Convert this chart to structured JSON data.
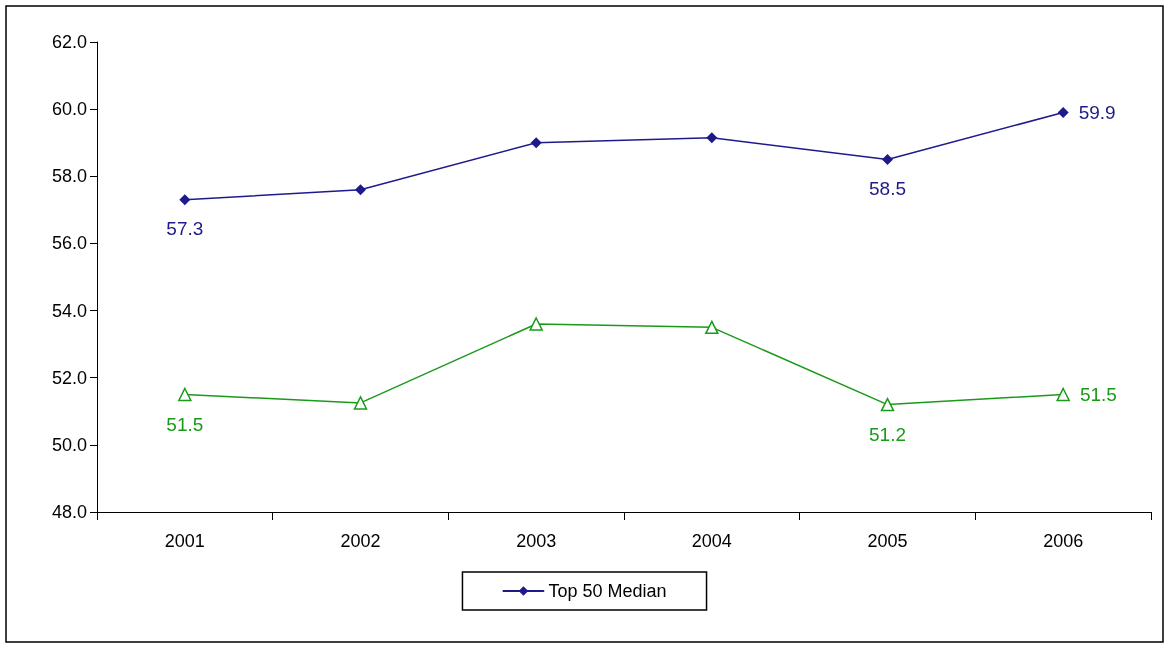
{
  "chart_data": {
    "type": "line",
    "categories": [
      "2001",
      "2002",
      "2003",
      "2004",
      "2005",
      "2006"
    ],
    "ylim": [
      48,
      62
    ],
    "yticks": [
      {
        "value": 48,
        "label": "48.0"
      },
      {
        "value": 50,
        "label": "50.0"
      },
      {
        "value": 52,
        "label": "52.0"
      },
      {
        "value": 54,
        "label": "54.0"
      },
      {
        "value": 56,
        "label": "56.0"
      },
      {
        "value": 58,
        "label": "58.0"
      },
      {
        "value": 60,
        "label": "60.0"
      },
      {
        "value": 62,
        "label": "62.0"
      }
    ],
    "grid": false,
    "legend": "bottom",
    "series": [
      {
        "color": "#1a9a1a",
        "marker": "triangle",
        "values": [
          51.5,
          51.25,
          53.6,
          53.5,
          51.2,
          51.5
        ],
        "value_labels": [
          "51.5",
          null,
          null,
          null,
          "51.2",
          "51.5"
        ]
      },
      {
        "name": "Top 50 Median",
        "color": "#1f1a8c",
        "marker": "diamond",
        "values": [
          57.3,
          57.6,
          59.0,
          59.15,
          58.5,
          59.9
        ],
        "value_labels": [
          "57.3",
          null,
          null,
          null,
          "58.5",
          "59.9"
        ]
      }
    ]
  }
}
